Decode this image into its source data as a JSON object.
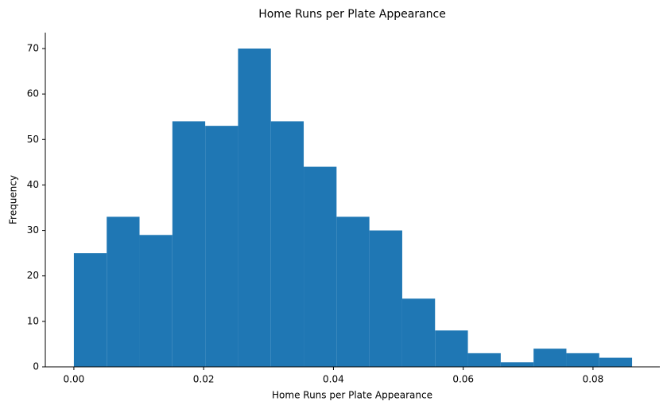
{
  "chart_data": {
    "type": "histogram",
    "title": "Home Runs per Plate Appearance",
    "xlabel": "Home Runs per Plate Appearance",
    "ylabel": "Frequency",
    "bins": [
      0,
      0.00506,
      0.01012,
      0.01518,
      0.02024,
      0.0253,
      0.03036,
      0.03542,
      0.04048,
      0.04554,
      0.0506,
      0.05566,
      0.06072,
      0.06578,
      0.07084,
      0.0759,
      0.08096,
      0.08602
    ],
    "values": [
      25,
      33,
      29,
      54,
      53,
      70,
      54,
      44,
      33,
      30,
      15,
      8,
      3,
      1,
      4,
      3,
      2
    ],
    "color": "#1f77b4",
    "xlim": [
      -0.0044,
      0.0903
    ],
    "xticks": [
      {
        "value": 0,
        "label": "0.00"
      },
      {
        "value": 0.02,
        "label": "0.02"
      },
      {
        "value": 0.04,
        "label": "0.04"
      },
      {
        "value": 0.06,
        "label": "0.06"
      },
      {
        "value": 0.08,
        "label": "0.08"
      }
    ],
    "ylim": [
      0,
      73.5
    ],
    "yticks": [
      0,
      10,
      20,
      30,
      40,
      50,
      60,
      70
    ],
    "grid": false
  }
}
